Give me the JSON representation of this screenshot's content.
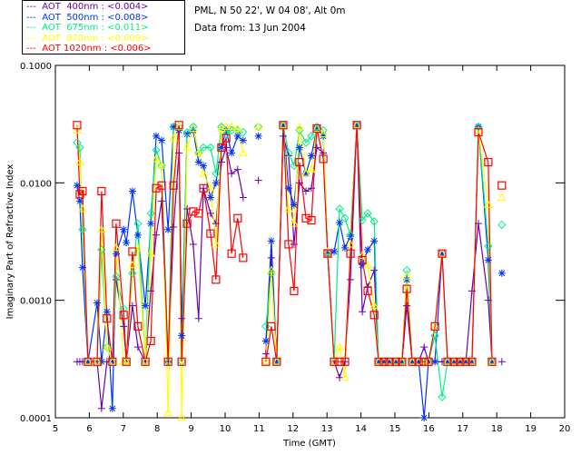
{
  "header": {
    "station": "PML, N 50 22', W 04 08', Alt 0m",
    "date": "Data from: 13 Jun 2004"
  },
  "chart_data": {
    "type": "line",
    "title": "",
    "xlabel": "Time (GMT)",
    "ylabel": "Imaginary Part of Refractive Index",
    "xlim": [
      5,
      20
    ],
    "ylim": [
      0.0001,
      0.1
    ],
    "yscale": "log",
    "xticks": [
      "5",
      "6",
      "7",
      "8",
      "9",
      "10",
      "11",
      "12",
      "13",
      "14",
      "15",
      "16",
      "17",
      "18",
      "19",
      "20"
    ],
    "yticks": [
      "0.0001",
      "0.0010",
      "0.0100",
      "0.1000"
    ],
    "legend_position": "top-left-outside",
    "x": [
      5.64,
      5.72,
      5.8,
      5.96,
      6.23,
      6.36,
      6.52,
      6.68,
      6.79,
      7.01,
      7.09,
      7.27,
      7.43,
      7.65,
      7.81,
      7.97,
      8.13,
      8.32,
      8.48,
      8.64,
      8.72,
      8.88,
      9.06,
      9.22,
      9.36,
      9.57,
      9.73,
      9.89,
      10.03,
      10.19,
      10.37,
      10.53,
      10.75,
      10.98,
      11.1,
      11.2,
      11.36,
      11.52,
      11.71,
      11.87,
      12.03,
      12.19,
      12.38,
      12.54,
      12.7,
      12.89,
      13.02,
      13.21,
      13.37,
      13.53,
      13.69,
      13.88,
      14.04,
      14.2,
      14.39,
      14.52,
      14.68,
      14.84,
      15.03,
      15.21,
      15.35,
      15.51,
      15.7,
      15.86,
      15.99,
      16.18,
      16.39,
      16.55,
      16.74,
      16.92,
      17.09,
      17.27,
      17.46,
      17.75,
      17.86,
      18.0,
      18.15
    ],
    "series": [
      {
        "name": "AOT  400nm : <0.004>",
        "dash": "---",
        "color": "#6a00b0",
        "marker": "plus",
        "values": [
          0.0003,
          0.0003,
          0.0003,
          0.0003,
          0.0003,
          0.00012,
          0.0003,
          0.0003,
          0.0015,
          0.0006,
          0.0003,
          0.0009,
          0.0004,
          0.0003,
          0.0012,
          0.0036,
          0.007,
          0.0003,
          0.0042,
          0.018,
          0.0007,
          0.006,
          0.003,
          0.0007,
          0.009,
          0.0055,
          0.0045,
          0.015,
          0.02,
          0.012,
          0.013,
          0.0075,
          null,
          0.0105,
          null,
          0.00035,
          0.0023,
          0.0003,
          0.025,
          0.017,
          0.003,
          0.01,
          0.0085,
          0.009,
          0.02,
          0.018,
          0.0027,
          0.0003,
          0.00022,
          0.0003,
          0.0015,
          0.031,
          0.0008,
          0.0013,
          0.0018,
          0.0003,
          0.0003,
          0.0003,
          0.0003,
          0.0003,
          0.0009,
          0.0003,
          0.0003,
          0.0004,
          0.0003,
          0.0003,
          0.0003,
          0.0003,
          0.0003,
          0.0003,
          0.0003,
          0.0012,
          0.0045,
          0.001,
          0.0003,
          null,
          0.0003
        ]
      },
      {
        "name": "AOT  500nm : <0.008>",
        "dash": "---",
        "color": "#0033ff",
        "marker": "asterisk",
        "values": [
          0.0095,
          0.007,
          0.0019,
          0.0003,
          0.00095,
          0.0003,
          0.0008,
          0.00012,
          0.0025,
          0.004,
          0.0031,
          0.0085,
          0.0036,
          0.0009,
          0.0045,
          0.025,
          0.023,
          0.004,
          0.03,
          0.028,
          0.0005,
          0.026,
          0.028,
          0.015,
          0.014,
          0.0075,
          0.01,
          0.02,
          0.028,
          0.018,
          0.025,
          0.023,
          null,
          0.025,
          null,
          0.00045,
          0.0032,
          0.0003,
          0.031,
          0.009,
          0.0065,
          0.02,
          0.012,
          0.017,
          0.029,
          0.025,
          0.0025,
          0.0026,
          0.0046,
          0.0028,
          0.0035,
          0.031,
          0.002,
          0.0027,
          0.0032,
          0.0003,
          0.0003,
          0.0003,
          0.0003,
          0.0003,
          0.0015,
          0.0003,
          0.0003,
          0.0001,
          0.0003,
          0.0003,
          0.0025,
          0.0003,
          0.0003,
          0.0003,
          0.0003,
          0.0003,
          0.03,
          0.0022,
          0.0003,
          null,
          0.0017
        ]
      },
      {
        "name": "AOT  675nm : <0.011>",
        "dash": "---",
        "color": "#00ee88",
        "marker": "diamond",
        "values": [
          0.022,
          0.02,
          0.004,
          0.0003,
          0.0003,
          0.0027,
          0.0004,
          0.0003,
          0.0016,
          0.00085,
          0.0003,
          0.0017,
          0.0045,
          0.0003,
          0.0055,
          0.019,
          0.014,
          0.0003,
          0.03,
          0.03,
          0.0003,
          0.027,
          0.03,
          0.018,
          0.02,
          0.02,
          0.012,
          0.03,
          0.026,
          0.028,
          0.028,
          0.027,
          null,
          0.03,
          null,
          0.0006,
          0.0017,
          0.0003,
          0.031,
          0.018,
          0.014,
          0.028,
          0.022,
          0.025,
          0.03,
          0.028,
          0.0025,
          0.0003,
          0.006,
          0.005,
          0.0036,
          0.031,
          0.0048,
          0.0055,
          0.0047,
          0.0003,
          0.0003,
          0.0003,
          0.0003,
          0.0003,
          0.0018,
          0.0003,
          0.0003,
          0.0003,
          0.0003,
          0.0005,
          0.00015,
          0.0003,
          0.0003,
          0.0003,
          0.0003,
          0.0003,
          0.03,
          0.0029,
          0.0003,
          null,
          0.0044
        ]
      },
      {
        "name": "AOT  870nm : <0.009>",
        "dash": "---",
        "color": "#ffff00",
        "marker": "triangle",
        "values": [
          0.028,
          0.015,
          0.006,
          0.0003,
          0.0003,
          0.004,
          0.0004,
          0.0003,
          0.0028,
          0.0003,
          0.0003,
          0.002,
          0.0028,
          0.0003,
          0.0025,
          0.016,
          0.014,
          0.00011,
          0.024,
          0.03,
          0.0001,
          0.02,
          0.029,
          0.018,
          0.012,
          0.009,
          0.003,
          0.029,
          0.03,
          0.03,
          0.029,
          0.018,
          null,
          0.03,
          null,
          0.0003,
          0.0018,
          0.0003,
          0.031,
          0.006,
          0.0045,
          0.03,
          0.012,
          0.013,
          0.029,
          0.026,
          0.0026,
          0.0003,
          0.0004,
          0.00022,
          0.003,
          0.031,
          0.0024,
          0.002,
          0.0009,
          0.0003,
          0.0003,
          0.0003,
          0.0003,
          0.0003,
          0.0016,
          0.0003,
          0.0003,
          0.0003,
          0.0003,
          0.0006,
          0.0025,
          0.0003,
          0.0003,
          0.0003,
          0.0003,
          0.0003,
          0.028,
          0.0065,
          0.0003,
          null,
          0.0075
        ]
      },
      {
        "name": "AOT 1020nm : <0.006>",
        "dash": "---",
        "color": "#ff0000",
        "marker": "square",
        "values": [
          0.031,
          0.008,
          0.0085,
          0.0003,
          0.0003,
          0.0085,
          0.0007,
          0.0003,
          0.0045,
          0.00075,
          0.0003,
          0.0026,
          0.0006,
          0.0003,
          0.00045,
          0.009,
          0.0095,
          0.0003,
          0.0095,
          0.031,
          0.0003,
          0.0045,
          0.0057,
          0.0055,
          0.009,
          0.0037,
          0.0015,
          0.02,
          0.024,
          0.0025,
          0.005,
          0.0023,
          null,
          null,
          null,
          0.0003,
          0.0006,
          0.0003,
          0.031,
          0.003,
          0.0012,
          0.015,
          0.005,
          0.0048,
          0.029,
          0.016,
          0.0025,
          0.0003,
          0.0003,
          0.0003,
          0.0025,
          0.031,
          0.0022,
          0.0012,
          0.00075,
          0.0003,
          0.0003,
          0.0003,
          0.0003,
          0.0003,
          0.00125,
          0.0003,
          0.0003,
          0.0003,
          0.0003,
          0.0006,
          0.0025,
          0.0003,
          0.0003,
          0.0003,
          0.0003,
          0.0003,
          0.027,
          0.015,
          0.0003,
          null,
          0.0095
        ]
      }
    ]
  }
}
